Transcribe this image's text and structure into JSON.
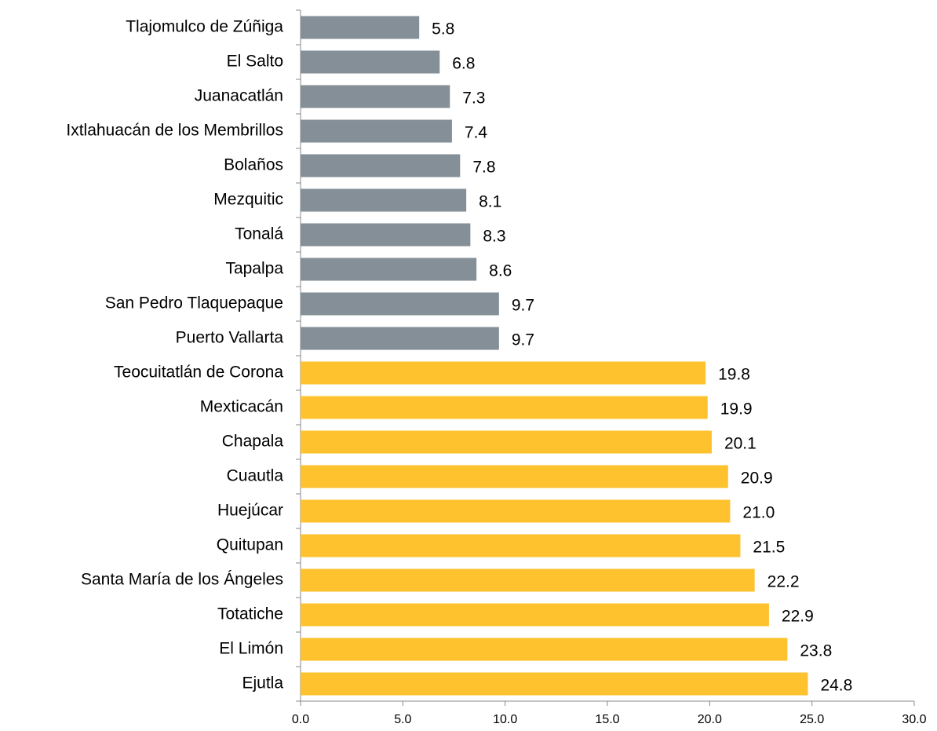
{
  "chart_data": {
    "type": "bar",
    "orientation": "horizontal",
    "categories": [
      "Tlajomulco de Zúñiga",
      "El Salto",
      "Juanacatlán",
      "Ixtlahuacán de los Membrillos",
      "Bolaños",
      "Mezquitic",
      "Tonalá",
      "Tapalpa",
      "San Pedro Tlaquepaque",
      "Puerto Vallarta",
      "Teocuitatlán de Corona",
      "Mexticacán",
      "Chapala",
      "Cuautla",
      "Huejúcar",
      "Quitupan",
      "Santa María de los Ángeles",
      "Totatiche",
      "El Limón",
      "Ejutla"
    ],
    "values": [
      5.8,
      6.8,
      7.3,
      7.4,
      7.8,
      8.1,
      8.3,
      8.6,
      9.7,
      9.7,
      19.8,
      19.9,
      20.1,
      20.9,
      21.0,
      21.5,
      22.2,
      22.9,
      23.8,
      24.8
    ],
    "value_labels": [
      "5.8",
      "6.8",
      "7.3",
      "7.4",
      "7.8",
      "8.1",
      "8.3",
      "8.6",
      "9.7",
      "9.7",
      "19.8",
      "19.9",
      "20.1",
      "20.9",
      "21.0",
      "21.5",
      "22.2",
      "22.9",
      "23.8",
      "24.8"
    ],
    "colors": [
      "#848f97",
      "#848f97",
      "#848f97",
      "#848f97",
      "#848f97",
      "#848f97",
      "#848f97",
      "#848f97",
      "#848f97",
      "#848f97",
      "#fec22f",
      "#fec22f",
      "#fec22f",
      "#fec22f",
      "#fec22f",
      "#fec22f",
      "#fec22f",
      "#fec22f",
      "#fec22f",
      "#fec22f"
    ],
    "xlim": [
      0,
      30
    ],
    "xticks": [
      {
        "value": 0,
        "label": "0.0"
      },
      {
        "value": 5,
        "label": "5.0"
      },
      {
        "value": 10,
        "label": "10.0"
      },
      {
        "value": 15,
        "label": "15.0"
      },
      {
        "value": 20,
        "label": "20.0"
      },
      {
        "value": 25,
        "label": "25.0"
      },
      {
        "value": 30,
        "label": "30.0"
      }
    ],
    "grid": false
  }
}
